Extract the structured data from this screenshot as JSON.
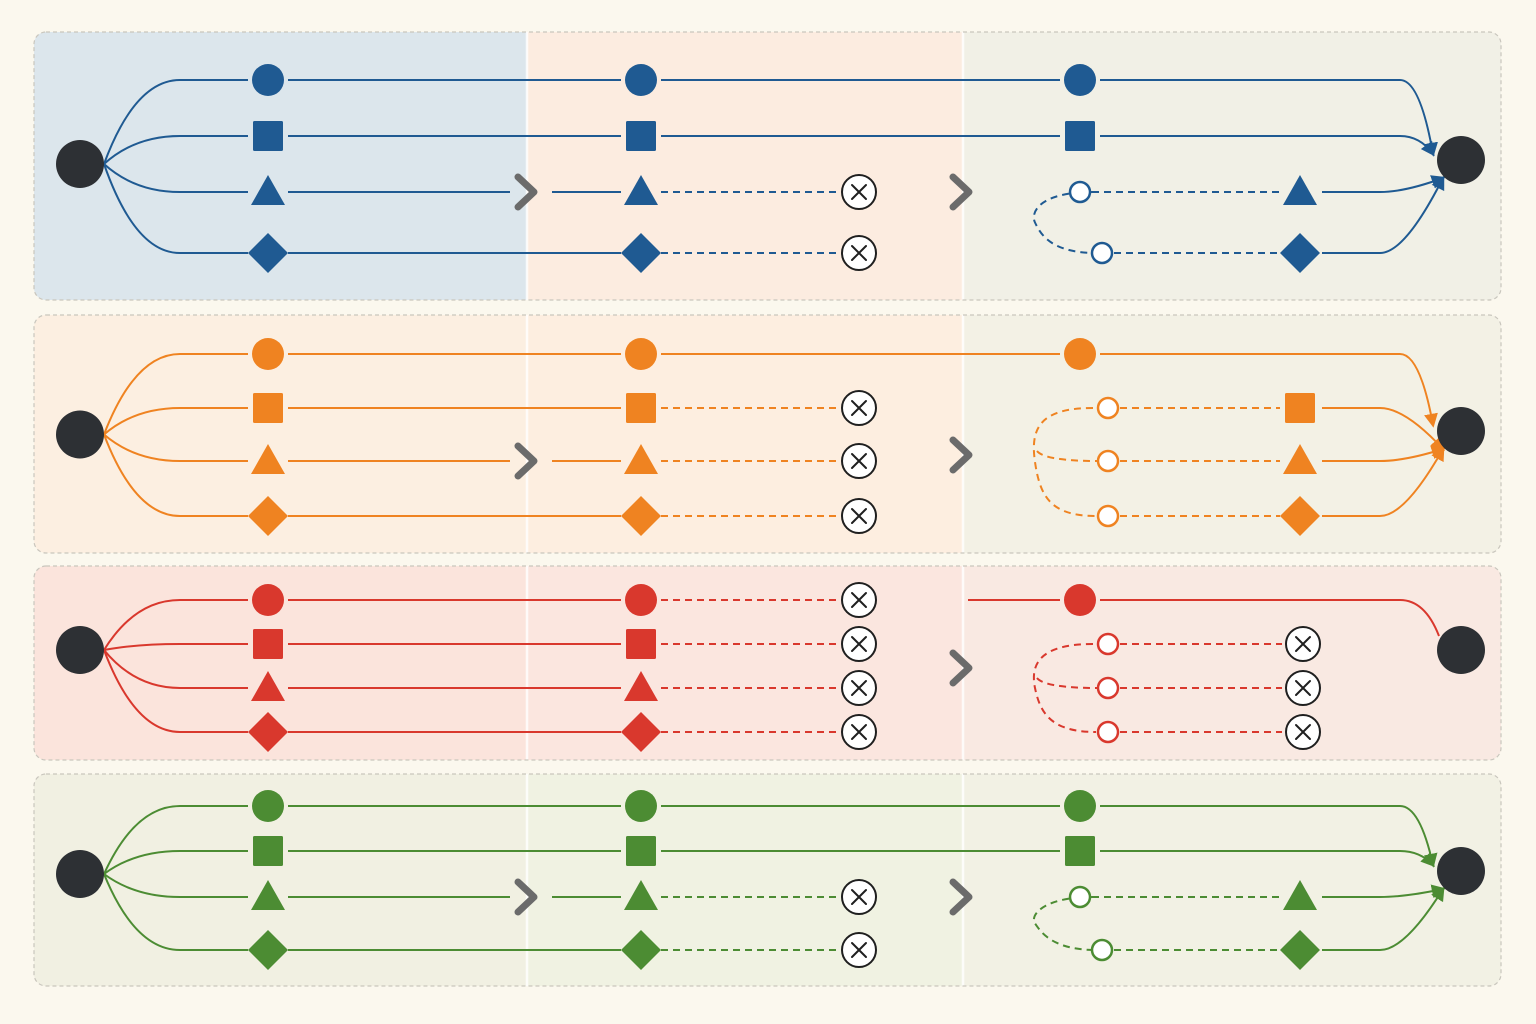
{
  "colors": {
    "background": "#fbf8ee",
    "panel_border": "#c9c6bd",
    "node": "#2d3034",
    "arrow": "#6b6b6b",
    "stop_icon": "#1f1f1f",
    "lane_tints": [
      "#dce6ec",
      "#fde5cf",
      "#fbd9cf",
      "#e7ecd5"
    ]
  },
  "icons": {
    "start": "start-node-icon",
    "end": "end-node-icon",
    "stage_arrow": "chevron-right-icon",
    "stop": "stop-x-icon",
    "retry": "hollow-retry-circle-icon",
    "shapes": [
      "circle",
      "square",
      "triangle",
      "diamond"
    ]
  },
  "lanes": [
    {
      "name": "blue",
      "color": "#1f5a92",
      "tracks": [
        {
          "shape": "circle",
          "stage2": "continue",
          "stage3": "continue"
        },
        {
          "shape": "square",
          "stage2": "continue",
          "stage3": "continue"
        },
        {
          "shape": "triangle",
          "stage2": "stopped",
          "stage3": "retried"
        },
        {
          "shape": "diamond",
          "stage2": "stopped",
          "stage3": "retried"
        }
      ]
    },
    {
      "name": "orange",
      "color": "#ef8321",
      "tracks": [
        {
          "shape": "circle",
          "stage2": "continue",
          "stage3": "continue"
        },
        {
          "shape": "square",
          "stage2": "stopped",
          "stage3": "retried"
        },
        {
          "shape": "triangle",
          "stage2": "stopped",
          "stage3": "retried"
        },
        {
          "shape": "diamond",
          "stage2": "stopped",
          "stage3": "retried"
        }
      ]
    },
    {
      "name": "red",
      "color": "#d9382d",
      "tracks": [
        {
          "shape": "circle",
          "stage2": "stopped",
          "stage3": "continue"
        },
        {
          "shape": "square",
          "stage2": "stopped",
          "stage3": "retry-failed"
        },
        {
          "shape": "triangle",
          "stage2": "stopped",
          "stage3": "retry-failed"
        },
        {
          "shape": "diamond",
          "stage2": "stopped",
          "stage3": "retry-failed"
        }
      ]
    },
    {
      "name": "green",
      "color": "#4c8c33",
      "tracks": [
        {
          "shape": "circle",
          "stage2": "continue",
          "stage3": "continue"
        },
        {
          "shape": "square",
          "stage2": "continue",
          "stage3": "continue"
        },
        {
          "shape": "triangle",
          "stage2": "stopped",
          "stage3": "retried"
        },
        {
          "shape": "diamond",
          "stage2": "stopped",
          "stage3": "retried"
        }
      ]
    }
  ]
}
